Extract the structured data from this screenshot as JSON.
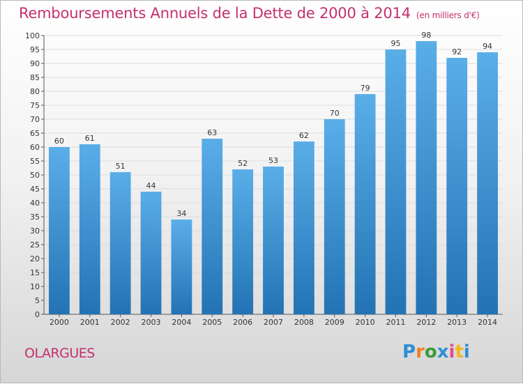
{
  "header": {
    "title": "Remboursements Annuels de la Dette de 2000 à 2014",
    "subtitle": "(en milliers d'€)"
  },
  "footer": {
    "commune": "OLARGUES",
    "logo_text": "Proxiti"
  },
  "colors": {
    "title": "#c4306e",
    "bar_light": "#5aaee8",
    "bar_dark": "#2373b4"
  },
  "chart_data": {
    "type": "bar",
    "categories": [
      "2000",
      "2001",
      "2002",
      "2003",
      "2004",
      "2005",
      "2006",
      "2007",
      "2008",
      "2009",
      "2010",
      "2011",
      "2012",
      "2013",
      "2014"
    ],
    "values": [
      60,
      61,
      51,
      44,
      34,
      63,
      52,
      53,
      62,
      70,
      79,
      95,
      98,
      92,
      94
    ],
    "title": "Remboursements Annuels de la Dette de 2000 à 2014",
    "subtitle": "(en milliers d'€)",
    "xlabel": "",
    "ylabel": "",
    "ylim": [
      0,
      100
    ],
    "yticks": [
      0,
      5,
      10,
      15,
      20,
      25,
      30,
      35,
      40,
      45,
      50,
      55,
      60,
      65,
      70,
      75,
      80,
      85,
      90,
      95,
      100
    ],
    "grid": true,
    "data_labels": true
  }
}
